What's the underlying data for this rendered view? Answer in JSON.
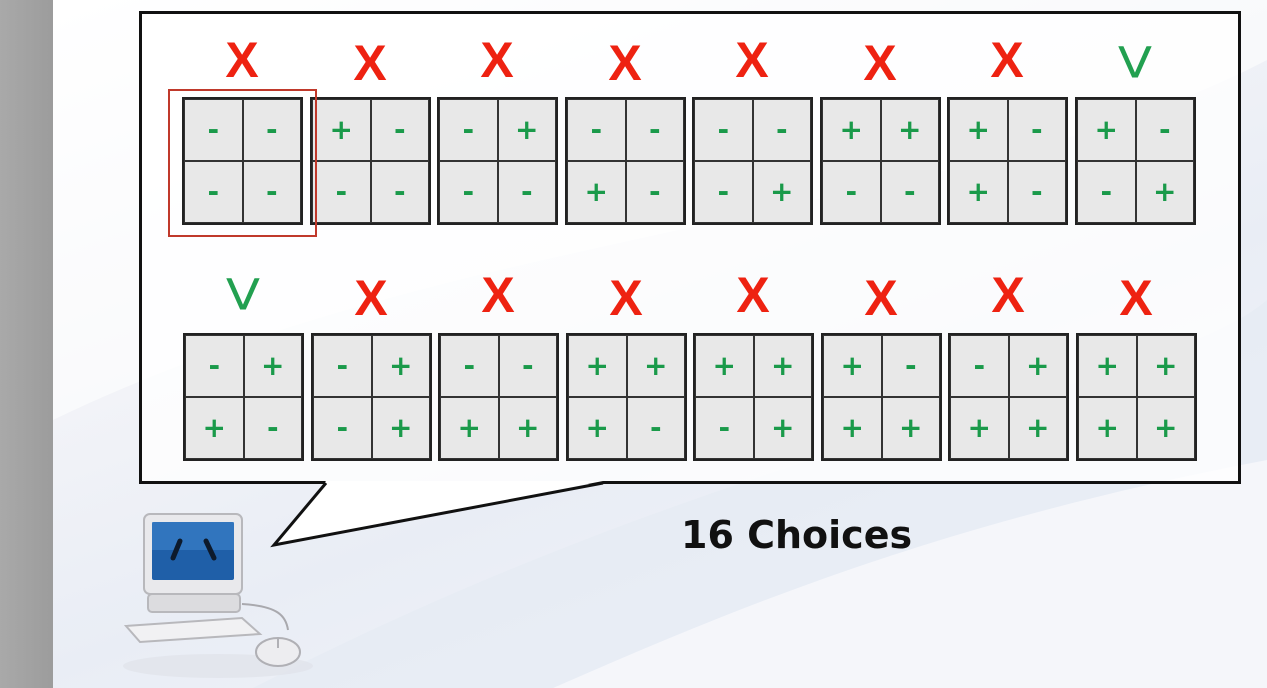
{
  "caption": "16  Choices",
  "rows": [
    {
      "blocks": [
        {
          "mark": "X",
          "cells": [
            "-",
            "-",
            "-",
            "-"
          ],
          "highlighted": true
        },
        {
          "mark": "X",
          "cells": [
            "+",
            "-",
            "-",
            "-"
          ]
        },
        {
          "mark": "X",
          "cells": [
            "-",
            "+",
            "-",
            "-"
          ]
        },
        {
          "mark": "X",
          "cells": [
            "-",
            "-",
            "+",
            "-"
          ]
        },
        {
          "mark": "X",
          "cells": [
            "-",
            "-",
            "-",
            "+"
          ]
        },
        {
          "mark": "X",
          "cells": [
            "+",
            "+",
            "-",
            "-"
          ]
        },
        {
          "mark": "X",
          "cells": [
            "+",
            "-",
            "+",
            "-"
          ]
        },
        {
          "mark": "V",
          "cells": [
            "+",
            "-",
            "-",
            "+"
          ]
        }
      ]
    },
    {
      "blocks": [
        {
          "mark": "V",
          "cells": [
            "-",
            "+",
            "+",
            "-"
          ]
        },
        {
          "mark": "X",
          "cells": [
            "-",
            "+",
            "-",
            "+"
          ]
        },
        {
          "mark": "X",
          "cells": [
            "-",
            "-",
            "+",
            "+"
          ]
        },
        {
          "mark": "X",
          "cells": [
            "+",
            "+",
            "+",
            "-"
          ]
        },
        {
          "mark": "X",
          "cells": [
            "+",
            "+",
            "-",
            "+"
          ]
        },
        {
          "mark": "X",
          "cells": [
            "+",
            "-",
            "+",
            "+"
          ]
        },
        {
          "mark": "X",
          "cells": [
            "-",
            "+",
            "+",
            "+"
          ]
        },
        {
          "mark": "X",
          "cells": [
            "+",
            "+",
            "+",
            "+"
          ]
        }
      ]
    }
  ],
  "colors": {
    "x_mark": "#ee2211",
    "v_mark": "#22a050",
    "cell_symbol": "#1a9a4a",
    "highlight_border": "#c0392b"
  },
  "icons": {
    "computer": "computer-icon"
  }
}
